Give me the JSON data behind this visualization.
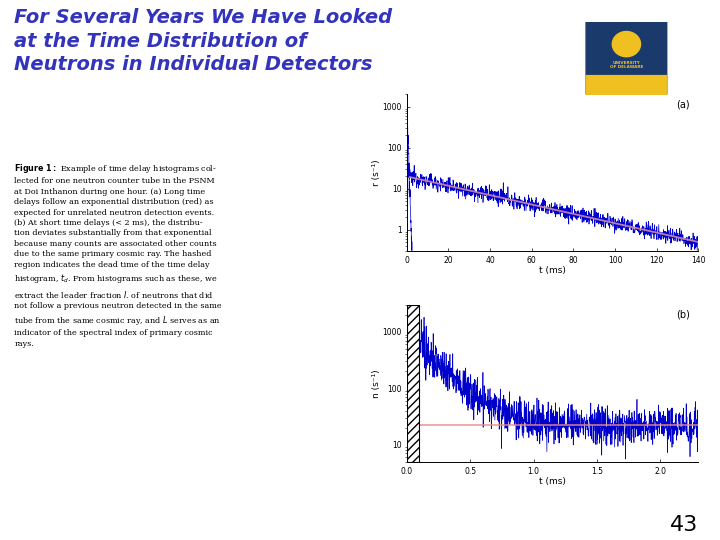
{
  "title_line1": "For Several Years We Have Looked",
  "title_line2": "at the Time Distribution of",
  "title_line3": "Neutrons in Individual Detectors",
  "title_color": "#3333bb",
  "title_fontsize": 14,
  "bg_color": "#ffffff",
  "plot_a_xlabel": "t (ms)",
  "plot_a_ylabel": "r (s⁻¹)",
  "plot_a_label": "(a)",
  "plot_a_xlim": [
    0,
    140
  ],
  "plot_a_ylim": [
    0.3,
    2000
  ],
  "plot_a_xticks": [
    0,
    20,
    40,
    60,
    80,
    100,
    120,
    140
  ],
  "plot_a_yticks": [
    1,
    10,
    100,
    1000
  ],
  "plot_b_xlabel": "t (ms)",
  "plot_b_ylabel": "n (s⁻¹)",
  "plot_b_label": "(b)",
  "plot_b_xlim": [
    0.0,
    2.3
  ],
  "plot_b_ylim": [
    5,
    3000
  ],
  "plot_b_xticks": [
    0.0,
    0.5,
    1.0,
    1.5,
    2.0
  ],
  "plot_b_yticks": [
    10,
    100,
    1000
  ],
  "line_color_blue": "#0000cc",
  "line_color_red": "#ee8888",
  "line_color_pink": "#cc88aa",
  "page_number": "43",
  "caption_bold": "Figure 1:",
  "caption_rest": " Example of time delay histograms col-\nlected for one neutron counter tube in the PSNM\nat Doi Inthanon during one hour. (a) Long time\ndelays follow an exponential distribution (red) as\nexpected for unrelated neutron detection events.\n(b) At short time delays (< 2 ms), the distribu-\ntion deviates substantially from that exponential\nbecause many counts are associated other counts\ndue to the same primary cosmic ray. The hashed\nregion indicates the dead time of the time delay\nhistogram, t_d. From histograms such as these, we\nextract the leader fraction I. of neutrons that did\nnot follow a previous neutron detected in the same\ntube from the same cosmic ray, and L serves as an\nindicator of the spectral index of primary cosmic\nrays."
}
